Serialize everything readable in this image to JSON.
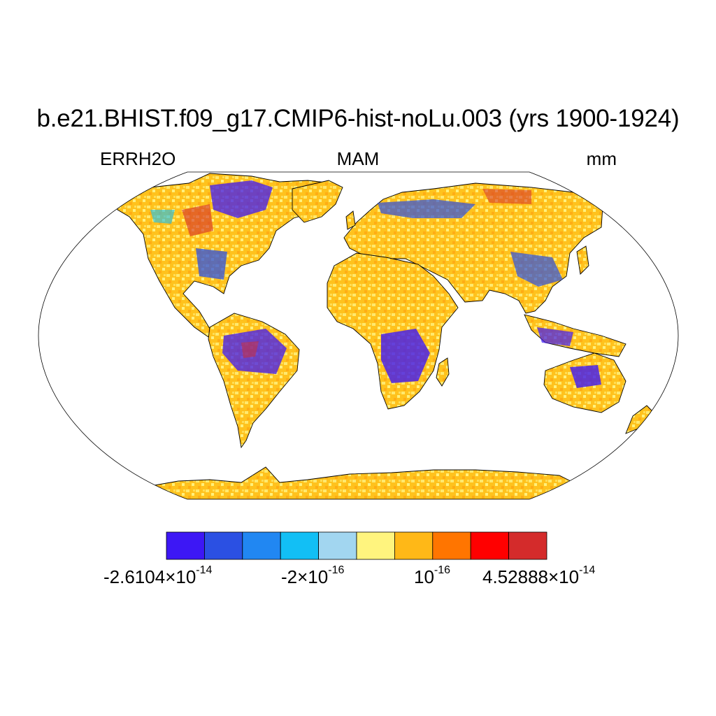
{
  "title": "b.e21.BHIST.f09_g17.CMIP6-hist-noLu.003 (yrs 1900-1924)",
  "left_label": "ERRH2O",
  "center_label": "MAM",
  "right_label": "mm",
  "colorbar": {
    "colors": [
      "#3d17f5",
      "#2b50e3",
      "#2187f2",
      "#12bff5",
      "#a2d6f0",
      "#fff47e",
      "#ffb817",
      "#ff7500",
      "#ff0000",
      "#d42b2b"
    ],
    "labels": [
      {
        "mantissa": "-2.6104",
        "exponent": "-14"
      },
      {
        "mantissa": "-2",
        "exponent": "-16"
      },
      {
        "mantissa": "",
        "exponent": "-16"
      },
      {
        "mantissa": "4.52888",
        "exponent": "-14"
      }
    ]
  }
}
